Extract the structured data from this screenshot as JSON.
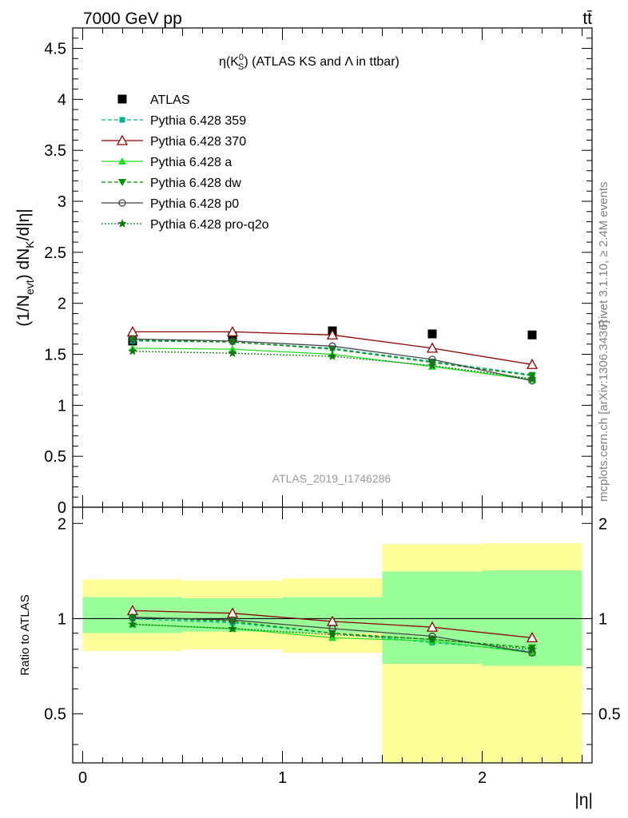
{
  "header": {
    "left": "7000 GeV pp",
    "right": "tt̄",
    "side_top": "Rivet 3.1.10, ≥ 2.4M events",
    "side_bottom": "mcplots.cern.ch [arXiv:1306.3436]",
    "watermark": "ATLAS_2019_I1746286"
  },
  "chart_data": [
    {
      "type": "scatter",
      "title": "η(K⁰_S) (ATLAS KS and Λ in ttbar)",
      "title_parts": {
        "pre": "η(K",
        "sup": "0",
        "sub": "S",
        "post": ") (ATLAS KS and Λ in ttbar)"
      },
      "ylabel": "(1/N_evt) dN_K/d|η|",
      "ylabel_parts": {
        "a": "(1/N",
        "b": "evt",
        "c": ") dN",
        "d": "K",
        "e": "/d|η|"
      },
      "ylim": [
        0,
        4.7
      ],
      "xlim": [
        -0.05,
        2.55
      ],
      "grid": false,
      "legend_placement": "top-left",
      "y_ticks": [
        "0",
        "0.5",
        "1",
        "1.5",
        "2",
        "2.5",
        "3",
        "3.5",
        "4",
        "4.5"
      ],
      "x": [
        0.25,
        0.75,
        1.25,
        1.75,
        2.25
      ],
      "series": [
        {
          "name": "ATLAS",
          "color": "#000000",
          "marker": "square",
          "line": "none",
          "values": [
            1.63,
            1.67,
            1.73,
            1.7,
            1.69
          ]
        },
        {
          "name": "Pythia 6.428 359",
          "color": "#00b38f",
          "marker": "small-square",
          "line": "dashed",
          "values": [
            1.63,
            1.62,
            1.56,
            1.43,
            1.3
          ]
        },
        {
          "name": "Pythia 6.428 370",
          "color": "#8b0000",
          "marker": "open-triangle",
          "line": "solid",
          "values": [
            1.72,
            1.72,
            1.69,
            1.56,
            1.4
          ]
        },
        {
          "name": "Pythia 6.428 a",
          "color": "#22dd22",
          "marker": "triangle",
          "line": "solid",
          "values": [
            1.56,
            1.55,
            1.5,
            1.38,
            1.25
          ]
        },
        {
          "name": "Pythia 6.428 dw",
          "color": "#008f00",
          "marker": "triangle-down",
          "line": "dashed",
          "values": [
            1.64,
            1.62,
            1.55,
            1.42,
            1.29
          ]
        },
        {
          "name": "Pythia 6.428 p0",
          "color": "#444444",
          "marker": "open-circle",
          "line": "solid",
          "values": [
            1.65,
            1.63,
            1.58,
            1.45,
            1.24
          ]
        },
        {
          "name": "Pythia 6.428 pro-q2o",
          "color": "#117711",
          "marker": "star",
          "line": "dotted",
          "values": [
            1.53,
            1.51,
            1.48,
            1.39,
            1.26
          ]
        }
      ]
    },
    {
      "type": "scatter",
      "ylabel": "Ratio to ATLAS",
      "xlabel": "|η|",
      "ylim": [
        0.35,
        2.25
      ],
      "xlim": [
        -0.05,
        2.55
      ],
      "y_ticks": [
        "0.5",
        "1",
        "2"
      ],
      "x_ticks": [
        "0",
        "1",
        "2"
      ],
      "bands": {
        "edges": [
          0,
          0.5,
          1.0,
          1.5,
          2.0,
          2.5
        ],
        "yellow_low": [
          0.79,
          0.8,
          0.78,
          0.33,
          0.33
        ],
        "yellow_high": [
          1.33,
          1.32,
          1.34,
          1.72,
          1.73
        ],
        "green_low": [
          0.9,
          0.91,
          0.9,
          0.72,
          0.71
        ],
        "green_high": [
          1.17,
          1.16,
          1.17,
          1.41,
          1.42
        ],
        "yellow_color": "#ffff99",
        "green_color": "#99ff99"
      },
      "x": [
        0.25,
        0.75,
        1.25,
        1.75,
        2.25
      ],
      "series": [
        {
          "name": "Pythia 6.428 359",
          "color": "#00b38f",
          "marker": "small-square",
          "line": "dashed",
          "values": [
            1.0,
            0.97,
            0.9,
            0.84,
            0.79
          ]
        },
        {
          "name": "Pythia 6.428 370",
          "color": "#8b0000",
          "marker": "open-triangle",
          "line": "solid",
          "values": [
            1.06,
            1.04,
            0.98,
            0.94,
            0.87
          ]
        },
        {
          "name": "Pythia 6.428 a",
          "color": "#22dd22",
          "marker": "triangle",
          "line": "solid",
          "values": [
            0.96,
            0.93,
            0.87,
            0.85,
            0.78
          ]
        },
        {
          "name": "Pythia 6.428 dw",
          "color": "#008f00",
          "marker": "triangle-down",
          "line": "dashed",
          "values": [
            1.01,
            0.98,
            0.9,
            0.86,
            0.81
          ]
        },
        {
          "name": "Pythia 6.428 p0",
          "color": "#444444",
          "marker": "open-circle",
          "line": "solid",
          "values": [
            1.01,
            0.99,
            0.93,
            0.88,
            0.78
          ]
        },
        {
          "name": "Pythia 6.428 pro-q2o",
          "color": "#117711",
          "marker": "star",
          "line": "dotted",
          "values": [
            0.96,
            0.93,
            0.89,
            0.86,
            0.8
          ]
        }
      ]
    }
  ]
}
